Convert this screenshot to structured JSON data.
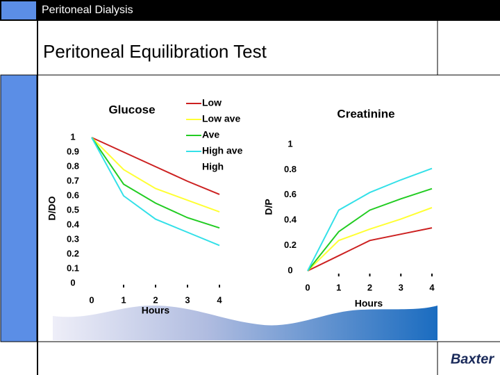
{
  "header": {
    "section": "Peritoneal Dialysis",
    "title": "Peritoneal Equilibration Test"
  },
  "chart_data": [
    {
      "type": "line",
      "title": "Glucose",
      "y_label": "D/DO",
      "x_label": "Hours",
      "x": [
        0,
        1,
        2,
        3,
        4
      ],
      "xlim": [
        0,
        4
      ],
      "xticks": [
        0,
        1,
        2,
        3,
        4
      ],
      "ylim": [
        0,
        1
      ],
      "yticks": [
        0,
        0.1,
        0.2,
        0.3,
        0.4,
        0.5,
        0.6,
        0.7,
        0.8,
        0.9,
        1
      ],
      "series": [
        {
          "name": "Low",
          "color": "#cc2020",
          "values": [
            1,
            0.9,
            0.8,
            0.7,
            0.61
          ]
        },
        {
          "name": "Low ave",
          "color": "#ffff33",
          "values": [
            1,
            0.78,
            0.65,
            0.57,
            0.49
          ]
        },
        {
          "name": "Ave",
          "color": "#22cc22",
          "values": [
            1,
            0.68,
            0.55,
            0.45,
            0.38
          ]
        },
        {
          "name": "High ave",
          "color": "#33e0e8",
          "values": [
            1,
            0.6,
            0.44,
            0.35,
            0.26
          ]
        },
        {
          "name": "High",
          "color": "#ffffff",
          "values": [
            null,
            null,
            null,
            null,
            null
          ]
        }
      ]
    },
    {
      "type": "line",
      "title": "Creatinine",
      "y_label": "D/P",
      "x_label": "Hours",
      "x": [
        0,
        1,
        2,
        3,
        4
      ],
      "xlim": [
        0,
        4
      ],
      "xticks": [
        0,
        1,
        2,
        3,
        4
      ],
      "ylim": [
        0,
        1
      ],
      "yticks": [
        0,
        0.2,
        0.4,
        0.6,
        0.8,
        1
      ],
      "series": [
        {
          "name": "Low",
          "color": "#cc2020",
          "values": [
            0,
            0.12,
            0.24,
            0.29,
            0.34
          ]
        },
        {
          "name": "Low ave",
          "color": "#ffff33",
          "values": [
            0,
            0.24,
            0.33,
            0.41,
            0.5
          ]
        },
        {
          "name": "Ave",
          "color": "#22cc22",
          "values": [
            0,
            0.31,
            0.48,
            0.57,
            0.65
          ]
        },
        {
          "name": "High ave",
          "color": "#33e0e8",
          "values": [
            0,
            0.48,
            0.62,
            0.72,
            0.81
          ]
        }
      ]
    }
  ],
  "footer": {
    "logo": "Baxter"
  }
}
